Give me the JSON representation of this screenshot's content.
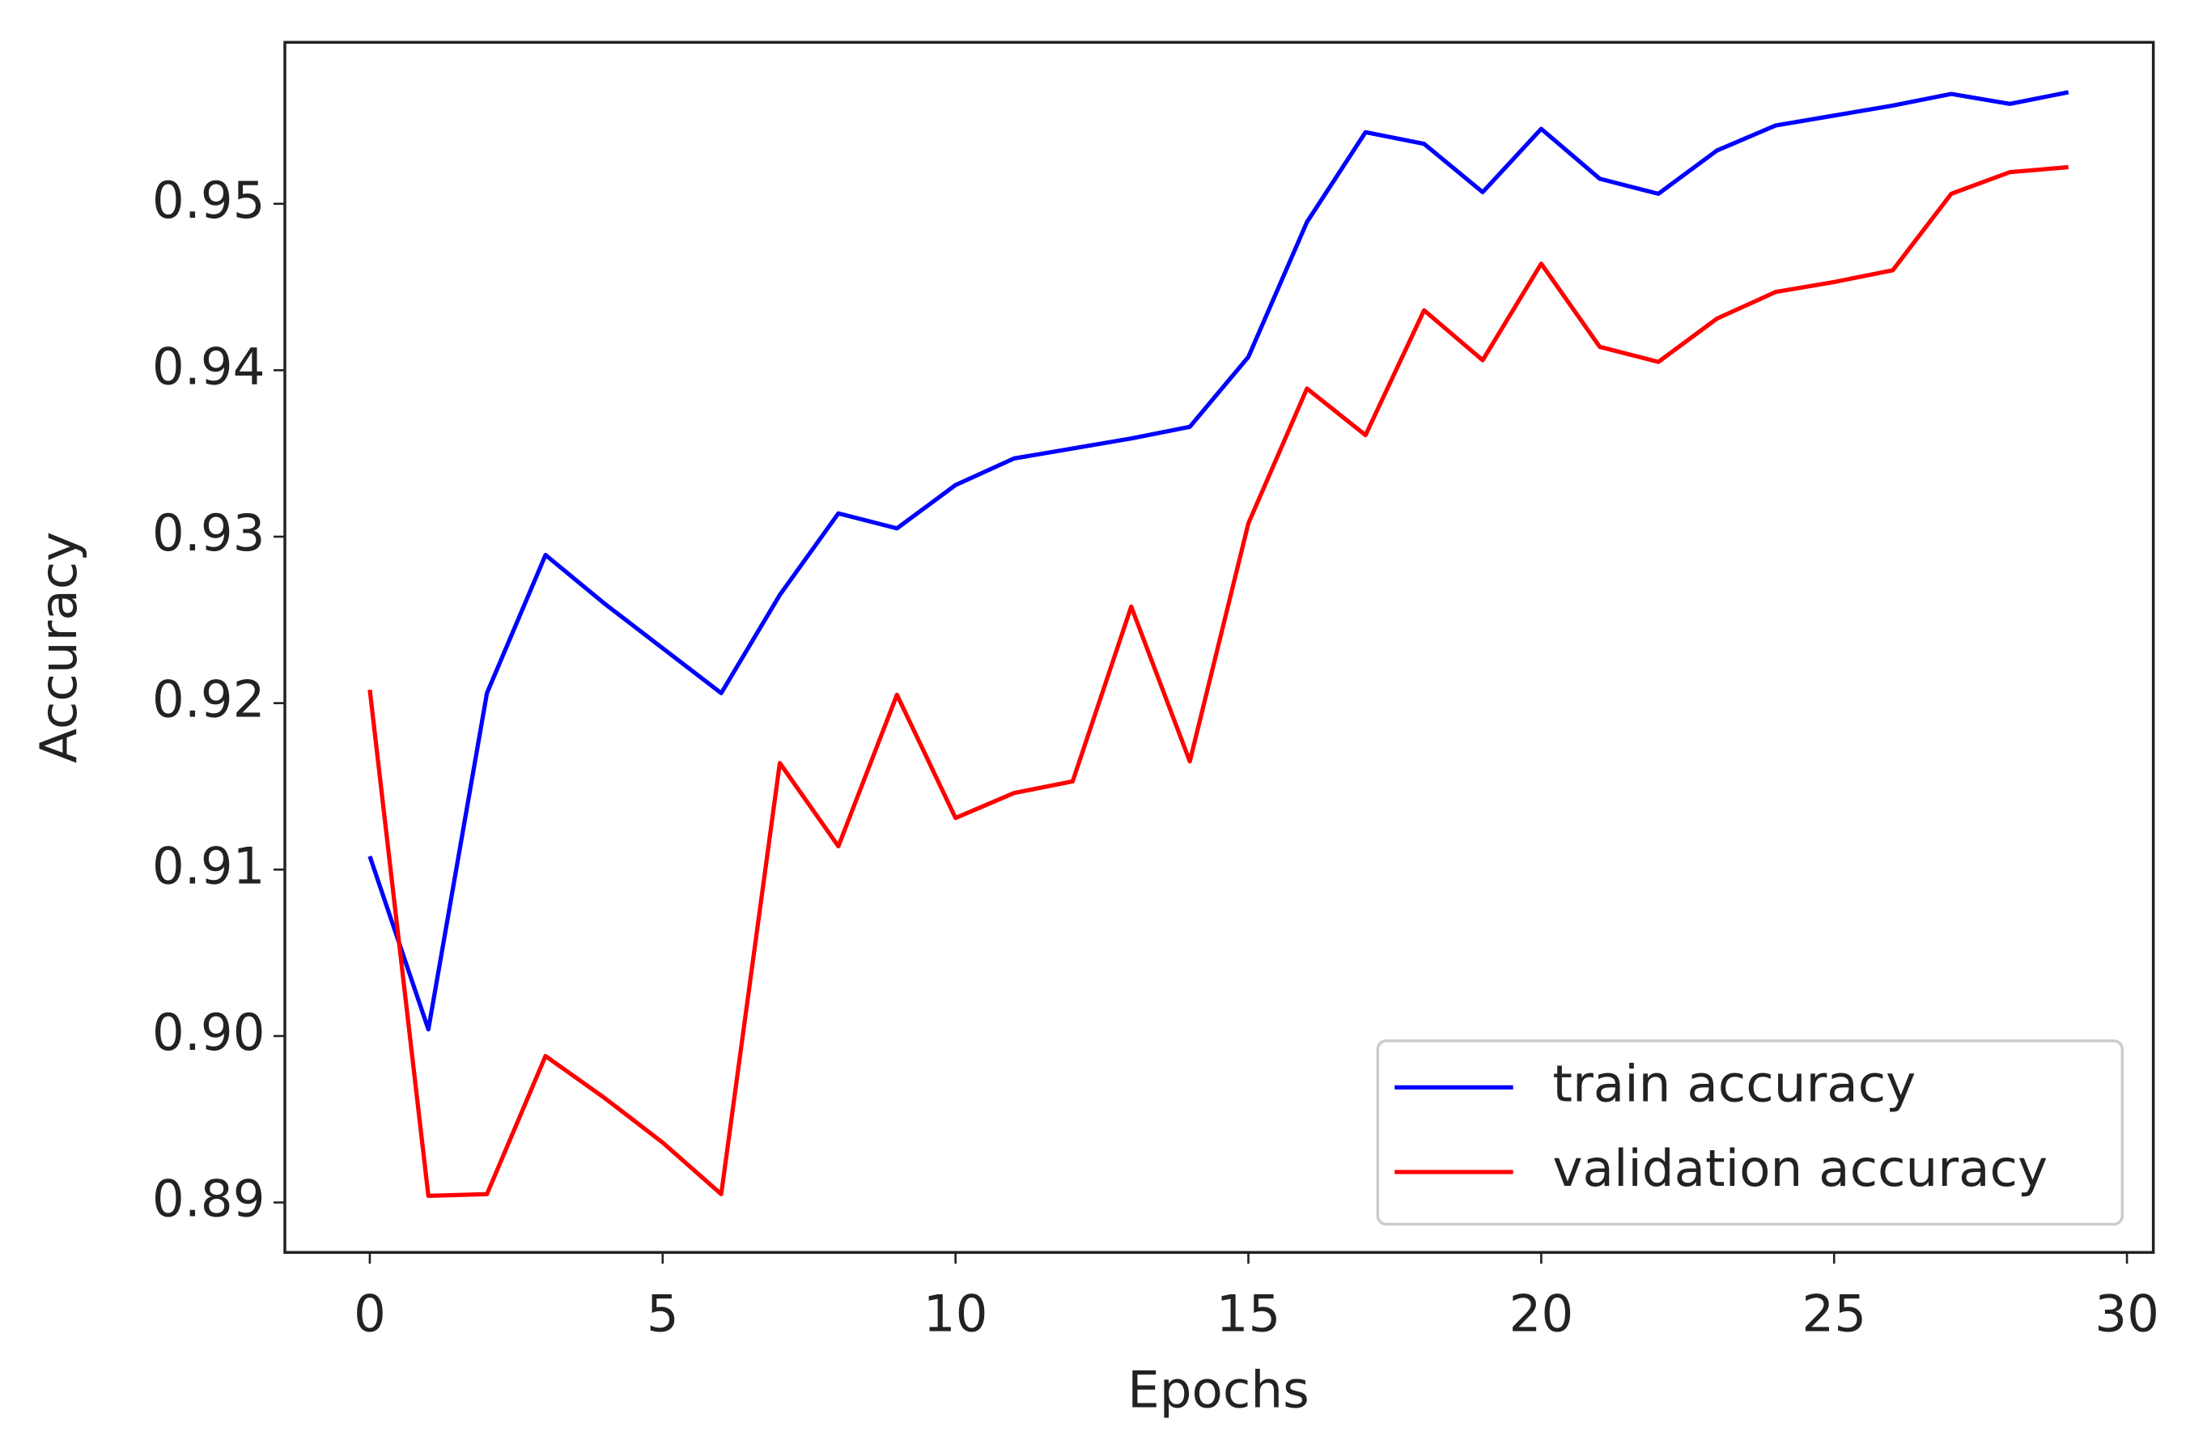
{
  "chart_data": {
    "type": "line",
    "xlabel": "Epochs",
    "ylabel": "Accuracy",
    "x": [
      0,
      1,
      2,
      3,
      4,
      5,
      6,
      7,
      8,
      9,
      10,
      11,
      12,
      13,
      14,
      15,
      16,
      17,
      18,
      19,
      20,
      21,
      22,
      23,
      24,
      25,
      26,
      27,
      28,
      29
    ],
    "series": [
      {
        "name": "train accuracy",
        "color": "#0000ff",
        "values": [
          0.9108,
          0.9004,
          0.9206,
          0.9289,
          0.926,
          0.9233,
          0.9206,
          0.9265,
          0.9314,
          0.9305,
          0.9331,
          0.9347,
          0.9353,
          0.9359,
          0.9366,
          0.9408,
          0.9489,
          0.9543,
          0.9536,
          0.9507,
          0.9545,
          0.9515,
          0.9506,
          0.9532,
          0.9547,
          0.9553,
          0.9559,
          0.9566,
          0.956,
          0.9567
        ]
      },
      {
        "name": "validation accuracy",
        "color": "#ff0000",
        "values": [
          0.9208,
          0.8904,
          0.8905,
          0.8988,
          0.8963,
          0.8936,
          0.8905,
          0.9164,
          0.9114,
          0.9205,
          0.9131,
          0.9146,
          0.9153,
          0.9258,
          0.9165,
          0.9308,
          0.9389,
          0.9361,
          0.9436,
          0.9406,
          0.9464,
          0.9414,
          0.9405,
          0.9431,
          0.9447,
          0.9453,
          0.946,
          0.9506,
          0.9519,
          0.9522
        ]
      }
    ],
    "xlim": [
      -1.45,
      30.45
    ],
    "xticks": [
      0,
      5,
      10,
      15,
      20,
      25,
      30
    ],
    "ylim": [
      0.887,
      0.9597
    ],
    "yticks": [
      0.89,
      {
        "value": 0.9,
        "label": "0.90"
      },
      0.91,
      0.92,
      0.93,
      0.94,
      0.95
    ],
    "grid": false,
    "legend": "lower right"
  }
}
